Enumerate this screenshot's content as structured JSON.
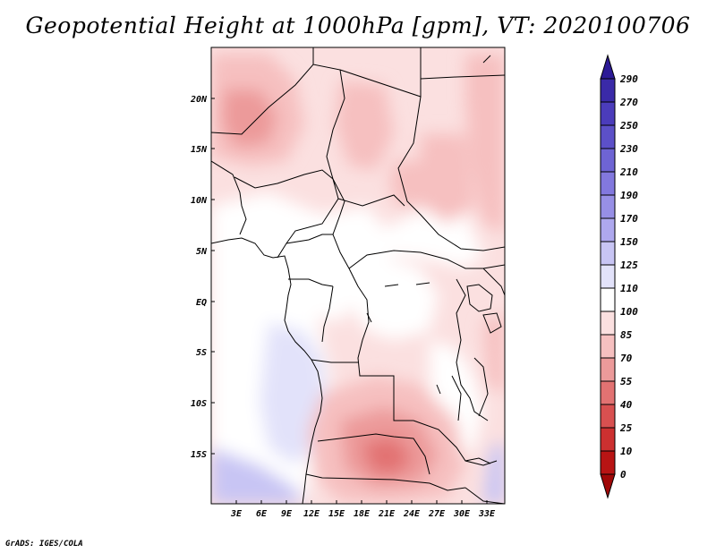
{
  "title": "Geopotential Height at 1000hPa [gpm], VT: 2020100706",
  "credit": "GrADS: IGES/COLA",
  "map": {
    "region": "Central Africa",
    "lat_labels": [
      "20N",
      "15N",
      "10N",
      "5N",
      "EQ",
      "5S",
      "10S",
      "15S"
    ],
    "lon_labels": [
      "3E",
      "6E",
      "9E",
      "12E",
      "15E",
      "18E",
      "21E",
      "24E",
      "27E",
      "30E",
      "33E"
    ]
  },
  "colorbar": {
    "labels": [
      "290",
      "270",
      "250",
      "230",
      "210",
      "190",
      "170",
      "150",
      "125",
      "110",
      "100",
      "85",
      "70",
      "55",
      "40",
      "25",
      "10",
      "0"
    ],
    "colors": [
      "#2c1a96",
      "#3a2aa8",
      "#4b3cbb",
      "#5c50c8",
      "#6e64d4",
      "#8278de",
      "#978fe6",
      "#aea8ee",
      "#c8c5f4",
      "#e2e2fa",
      "#ffffff",
      "#fbe0e0",
      "#f6c0c0",
      "#ec9a9a",
      "#e27272",
      "#d85050",
      "#cc3030",
      "#b81414",
      "#a00808"
    ]
  }
}
